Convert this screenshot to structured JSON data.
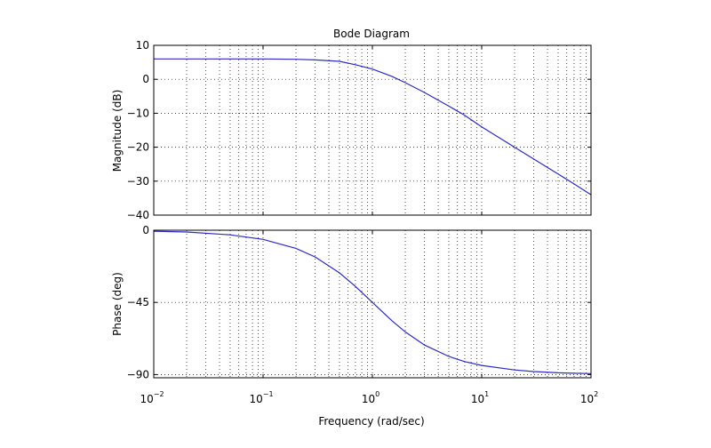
{
  "chart_data": {
    "type": "line",
    "title": "Bode Diagram",
    "xlabel": "Frequency  (rad/sec)",
    "xscale": "log",
    "xlim": [
      0.01,
      100
    ],
    "x_tick_labels": [
      {
        "base": "10",
        "exp": "−2"
      },
      {
        "base": "10",
        "exp": "−1"
      },
      {
        "base": "10",
        "exp": "0"
      },
      {
        "base": "10",
        "exp": "1"
      },
      {
        "base": "10",
        "exp": "2"
      }
    ],
    "grid": true,
    "line_color": "#2b2bc8",
    "panels": [
      {
        "name": "magnitude",
        "ylabel": "Magnitude (dB)",
        "ylim": [
          -40,
          10
        ],
        "yticks": [
          10,
          0,
          -10,
          -20,
          -30,
          -40
        ],
        "ytick_labels": [
          "10",
          "0",
          "−10",
          "−20",
          "−30",
          "−40"
        ],
        "series": [
          {
            "x": [
              0.01,
              0.02,
              0.05,
              0.1,
              0.2,
              0.3,
              0.5,
              0.7,
              1,
              1.5,
              2,
              3,
              5,
              7,
              10,
              20,
              30,
              50,
              70,
              100
            ],
            "y": [
              6.0,
              6.0,
              6.0,
              6.0,
              5.9,
              5.7,
              5.3,
              4.3,
              3.0,
              0.9,
              -1.0,
              -3.9,
              -7.9,
              -10.6,
              -14.0,
              -20.0,
              -23.5,
              -27.9,
              -30.8,
              -34.0
            ]
          }
        ]
      },
      {
        "name": "phase",
        "ylabel": "Phase (deg)",
        "ylim": [
          -92,
          0
        ],
        "yticks": [
          0,
          -45,
          -90
        ],
        "ytick_labels": [
          "0",
          "−45",
          "−90"
        ],
        "series": [
          {
            "x": [
              0.01,
              0.02,
              0.05,
              0.1,
              0.2,
              0.3,
              0.5,
              0.7,
              1,
              1.5,
              2,
              3,
              5,
              7,
              10,
              20,
              30,
              50,
              70,
              100
            ],
            "y": [
              -0.6,
              -1.1,
              -2.9,
              -5.7,
              -11.3,
              -16.7,
              -26.6,
              -35.0,
              -45.0,
              -56.3,
              -63.4,
              -71.6,
              -78.7,
              -81.9,
              -84.3,
              -87.1,
              -88.1,
              -88.9,
              -89.2,
              -89.4
            ]
          }
        ]
      }
    ]
  }
}
